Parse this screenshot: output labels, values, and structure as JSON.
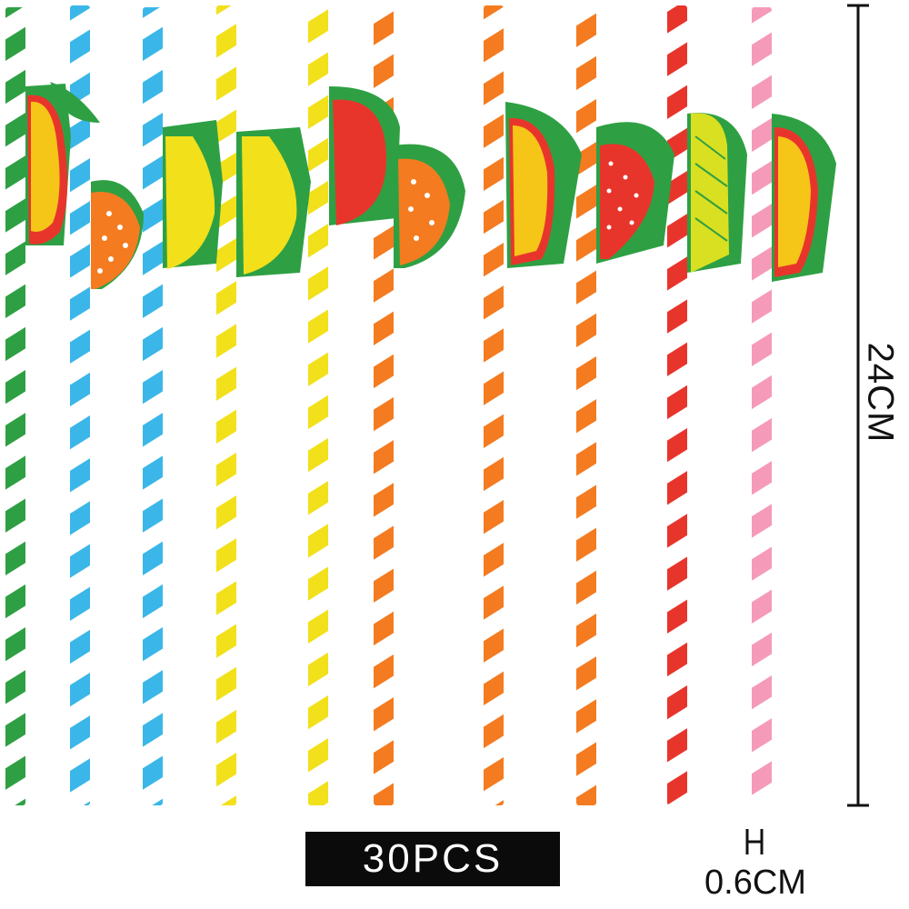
{
  "dimensions": {
    "length": "24CM",
    "diameter": "0.6CM"
  },
  "count_label": "30PCS",
  "straws": [
    {
      "stripe_color": "#2ea043",
      "fruit": "mango-icon"
    },
    {
      "stripe_color": "#3ab7e8",
      "fruit": "orange-slice-icon"
    },
    {
      "stripe_color": "#3ab7e8",
      "fruit": "lemon-icon"
    },
    {
      "stripe_color": "#f2e01a",
      "fruit": "lemon-icon"
    },
    {
      "stripe_color": "#f2e01a",
      "fruit": "apple-icon"
    },
    {
      "stripe_color": "#f47b20",
      "fruit": "orange-slice-icon"
    },
    {
      "stripe_color": "#f47b20",
      "fruit": "mango-icon"
    },
    {
      "stripe_color": "#f47b20",
      "fruit": "strawberry-icon"
    },
    {
      "stripe_color": "#e8352c",
      "fruit": "pineapple-icon"
    },
    {
      "stripe_color": "#f59ab8",
      "fruit": "mango-icon"
    }
  ],
  "dimension_line_color": "#111111"
}
